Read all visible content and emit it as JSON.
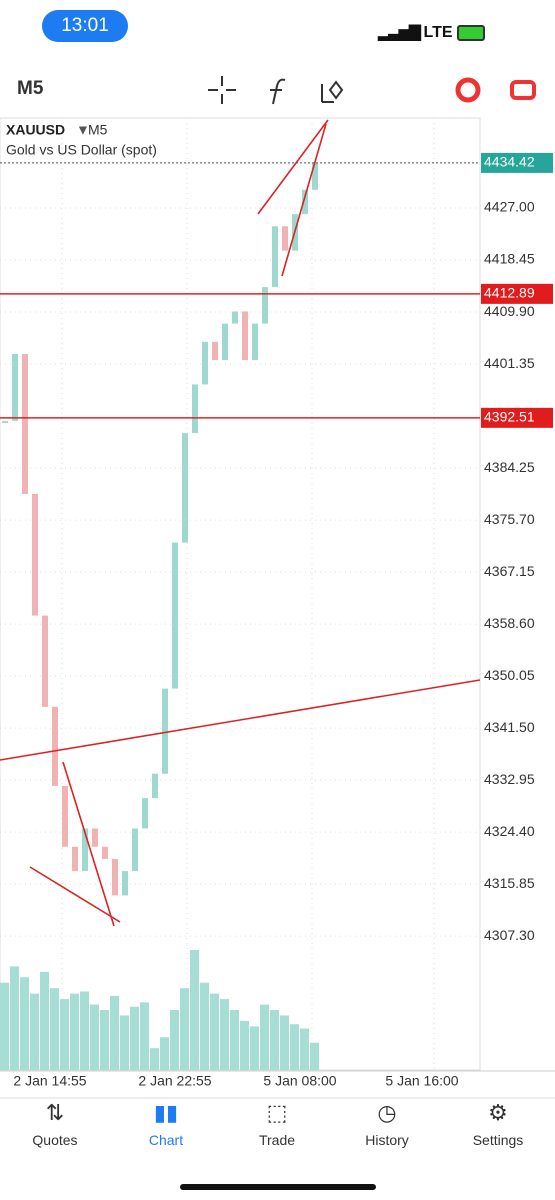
{
  "status_bar": {
    "time": "13:01",
    "network": "LTE"
  },
  "toolbar": {
    "timeframe": "M5"
  },
  "chart": {
    "symbol": "XAUUSD",
    "symbol_timeframe": "M5",
    "description": "Gold vs US Dollar (spot)",
    "ylim": [
      4285.3,
      4441.8
    ],
    "yticks": [
      {
        "value": 4427,
        "label": "4427.00"
      },
      4418.45,
      {
        "value": 4409.9,
        "label": "4409.90"
      },
      4401.35,
      4384.25,
      {
        "value": 4375.7,
        "label": "4375.70"
      },
      4367.15,
      {
        "value": 4358.6,
        "label": "4358.60"
      },
      4350.05,
      {
        "value": 4341.5,
        "label": "4341.50"
      },
      4332.95,
      {
        "value": 4324.4,
        "label": "4324.40"
      },
      4315.85,
      {
        "value": 4307.3,
        "label": "4307.30"
      }
    ],
    "x_labels": [
      "2 Jan 14:55",
      "2 Jan 22:55",
      "5 Jan 08:00",
      "5 Jan 16:00"
    ],
    "current_price": 4434.42,
    "levels": [
      4412.89,
      4392.51
    ],
    "prices": [
      4392,
      4403,
      4380,
      4360,
      4345,
      4332,
      4322,
      4318,
      4325,
      4322,
      4320,
      4314,
      4318,
      4325,
      4330,
      4334,
      4348,
      4372,
      4390,
      4398,
      4405,
      4402,
      4408,
      4410,
      4402,
      4408,
      4414,
      4424,
      4420,
      4426,
      4430,
      4434.42
    ],
    "volumes": [
      80,
      95,
      85,
      70,
      90,
      75,
      65,
      70,
      72,
      60,
      55,
      68,
      50,
      58,
      62,
      20,
      30,
      55,
      75,
      110,
      80,
      70,
      65,
      55,
      45,
      40,
      60,
      55,
      50,
      42,
      38,
      25
    ]
  },
  "nav": [
    "Quotes",
    "Chart",
    "Trade",
    "History",
    "Settings"
  ]
}
